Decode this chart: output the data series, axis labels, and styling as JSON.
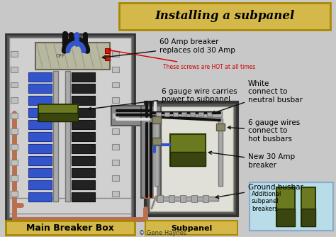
{
  "title": "Installing a subpanel",
  "bg_color": "#c8c8c8",
  "title_box_color": "#d4b84a",
  "main_panel_label": "Main Breaker Box",
  "subpanel_label": "Subpanel",
  "copyright": "© Gene Haynes",
  "ann_hot_screws": "These screws are HOT at all times",
  "ann_60amp": "60 Amp breaker\nreplaces old 30 Amp",
  "ann_6gauge": "6 gauge wire carries\npower to subpanel",
  "ann_white": "White\nconnect to\nneutral busbar",
  "ann_6gauge2": "6 gauge wires\nconnect to\nhot busbars",
  "ann_30amp": "New 30 Amp\nbreaker",
  "ann_ground": "Ground busbar",
  "ann_additional": "Additional\nsubpanel\nbreakers",
  "wire_black": "#111111",
  "wire_white": "#c8c8c8",
  "wire_copper": "#b87050",
  "wire_blue": "#3355cc",
  "wire_gray": "#888888",
  "breaker_green": "#6b7a20",
  "breaker_dark": "#3a4510"
}
